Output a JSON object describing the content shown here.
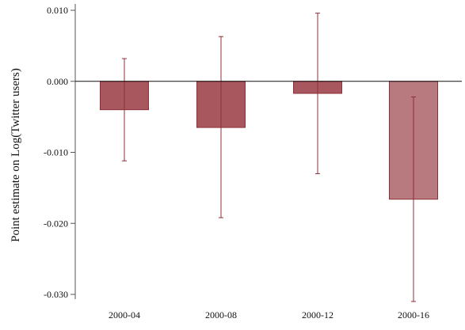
{
  "chart_data": {
    "type": "bar",
    "title": "",
    "xlabel": "",
    "ylabel": "Point estimate on Log(Twitter users)",
    "categories": [
      "2000-04",
      "2000-08",
      "2000-12",
      "2000-16"
    ],
    "values": [
      -0.004,
      -0.0065,
      -0.0017,
      -0.0166
    ],
    "ci_low": [
      -0.0112,
      -0.0192,
      -0.013,
      -0.031
    ],
    "ci_high": [
      0.0032,
      0.0063,
      0.0096,
      -0.0022
    ],
    "ylim": [
      -0.031,
      0.01
    ],
    "yticks": [
      0.01,
      0.0,
      -0.01,
      -0.02,
      -0.03
    ],
    "ytick_labels": [
      "0.010",
      "0.000",
      "-0.010",
      "-0.020",
      "-0.030"
    ],
    "grid": false,
    "bar_colors": [
      "#a8575e",
      "#a8575e",
      "#a8575e",
      "#b87a7f"
    ],
    "bar_edge_color": "#8c2f38",
    "errorbar_color": "#8c2f38",
    "zero_line_color": "#111111",
    "axis_color": "#555555"
  }
}
